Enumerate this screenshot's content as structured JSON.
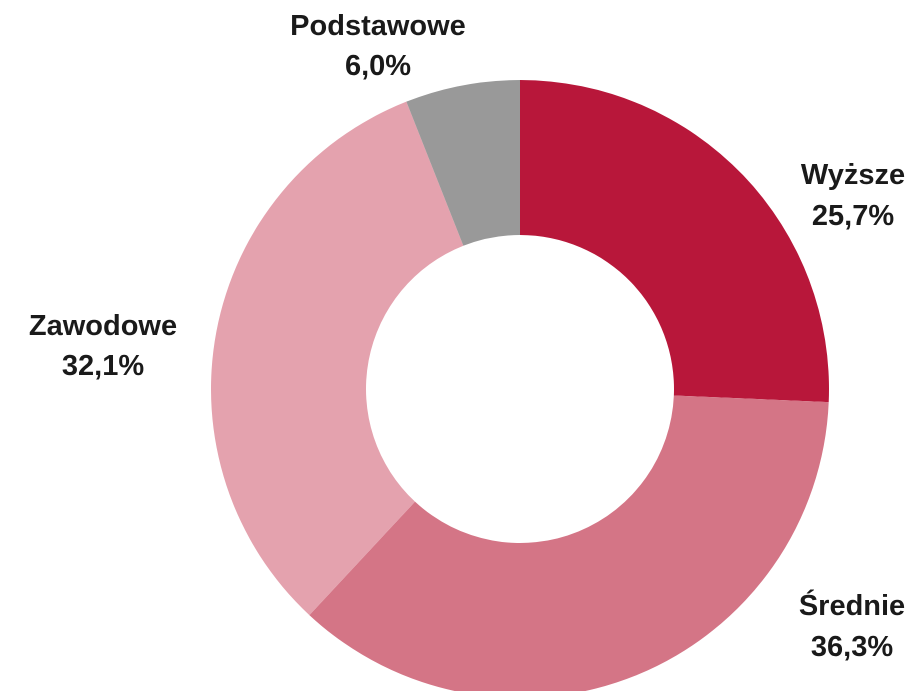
{
  "chart_data": {
    "type": "pie",
    "variant": "donut",
    "start": "12 o'clock",
    "direction": "clockwise",
    "slices": [
      {
        "label": "Wyższe",
        "value": 25.7,
        "value_label": "25,7%",
        "color": "#b8173a"
      },
      {
        "label": "Średnie",
        "value": 36.3,
        "value_label": "36,3%",
        "color": "#d47586"
      },
      {
        "label": "Zawodowe",
        "value": 32.1,
        "value_label": "32,1%",
        "color": "#e4a2ae"
      },
      {
        "label": "Podstawowe",
        "value": 6.0,
        "value_label": "6,0%",
        "color": "#999999"
      }
    ]
  }
}
